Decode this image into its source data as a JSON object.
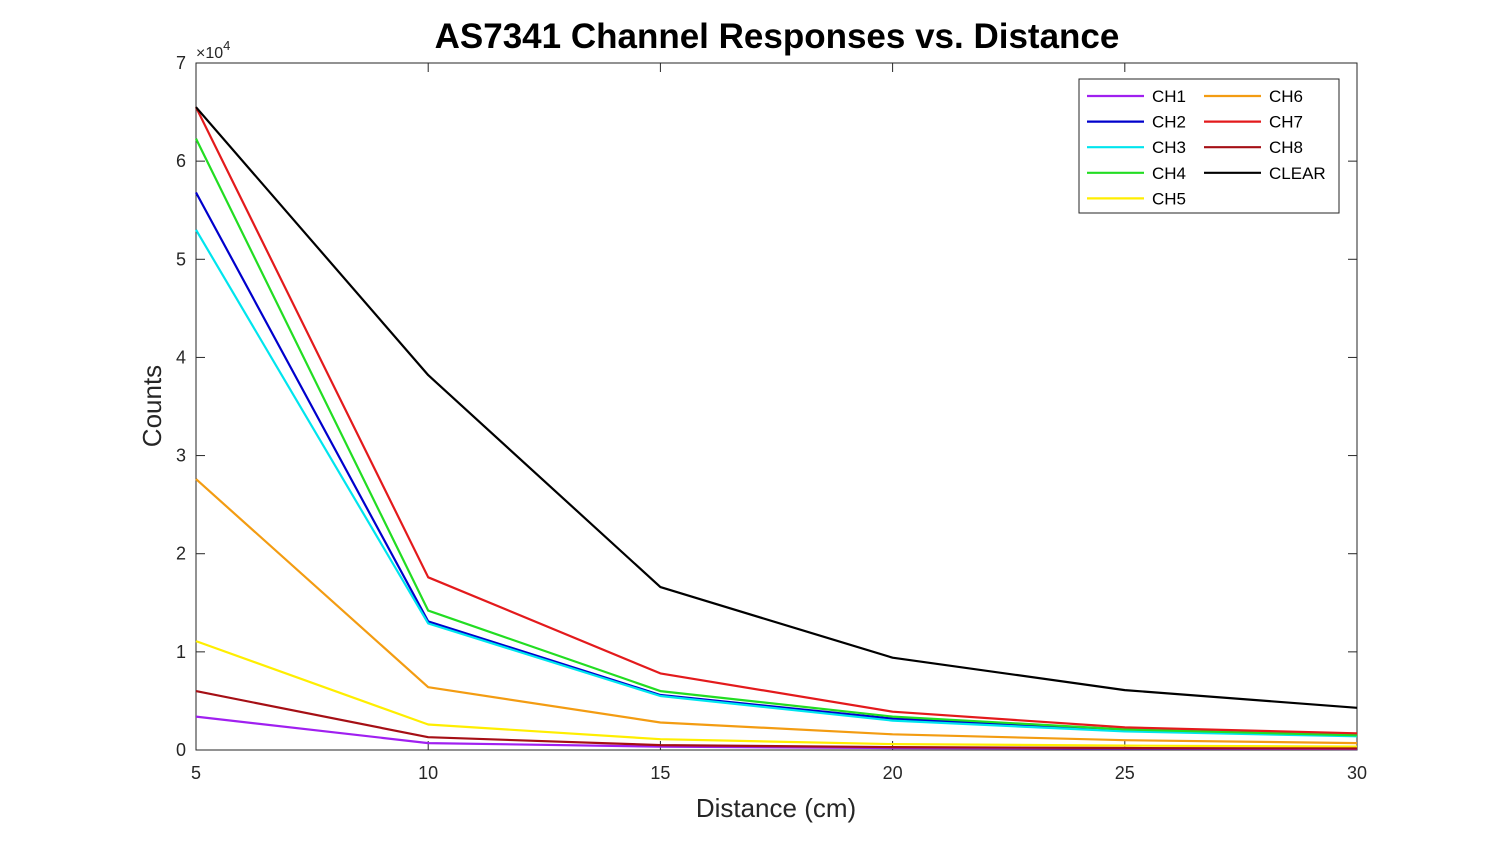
{
  "chart_data": {
    "type": "line",
    "title": "AS7341 Channel Responses vs. Distance",
    "xlabel": "Distance (cm)",
    "ylabel": "Counts",
    "x": [
      5,
      10,
      15,
      20,
      25,
      30
    ],
    "xlim": [
      5,
      30
    ],
    "ylim": [
      0,
      70000
    ],
    "x_ticks": [
      "5",
      "10",
      "15",
      "20",
      "25",
      "30"
    ],
    "y_ticks": [
      "0",
      "1",
      "2",
      "3",
      "4",
      "5",
      "6",
      "7"
    ],
    "y_exponent_base": "×10",
    "y_exponent_power": "4",
    "grid": false,
    "legend_position": "top-right",
    "series": [
      {
        "name": "CH1",
        "color": "#a020f0",
        "values": [
          3400,
          700,
          350,
          200,
          150,
          100
        ]
      },
      {
        "name": "CH2",
        "color": "#0000cc",
        "values": [
          56800,
          13100,
          5600,
          3200,
          2000,
          1500
        ]
      },
      {
        "name": "CH3",
        "color": "#00e5ee",
        "values": [
          53000,
          12900,
          5500,
          3000,
          1900,
          1400
        ]
      },
      {
        "name": "CH4",
        "color": "#22dd22",
        "values": [
          62300,
          14200,
          6000,
          3400,
          2100,
          1500
        ]
      },
      {
        "name": "CH5",
        "color": "#ffee00",
        "values": [
          11100,
          2600,
          1100,
          600,
          450,
          350
        ]
      },
      {
        "name": "CH6",
        "color": "#f39c12",
        "values": [
          27600,
          6400,
          2800,
          1600,
          1000,
          700
        ]
      },
      {
        "name": "CH7",
        "color": "#e31a1c",
        "values": [
          65500,
          17600,
          7800,
          3900,
          2300,
          1700
        ]
      },
      {
        "name": "CH8",
        "color": "#a50f15",
        "values": [
          6000,
          1300,
          500,
          300,
          200,
          150
        ]
      },
      {
        "name": "CLEAR",
        "color": "#000000",
        "values": [
          65500,
          38200,
          16600,
          9400,
          6100,
          4300
        ]
      }
    ]
  }
}
